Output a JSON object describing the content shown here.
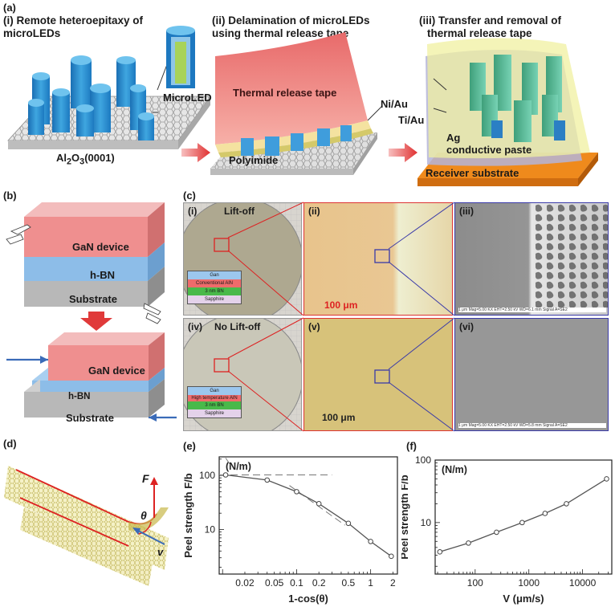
{
  "panel_a": {
    "label": "(a)",
    "step1": {
      "title_line1": "(i) Remote heteroepitaxy of",
      "title_line2": "microLEDs",
      "substrate": "Al2O3(0001)",
      "sub2": "2",
      "sub3": "3",
      "sub_tail": "(0001)",
      "inset": "MicroLED"
    },
    "step2": {
      "title_line1": "(ii) Delamination of microLEDs",
      "title_line2": "using thermal release tape",
      "tape": "Thermal release tape",
      "niau": "Ni/Au",
      "polyimide": "Polyimide"
    },
    "step3": {
      "title_line1": "(iii)  Transfer and removal of",
      "title_line2": "thermal release tape",
      "tiau": "Ti/Au",
      "ag_line1": "Ag",
      "ag_line2": "conductive paste",
      "receiver": "Receiver substrate"
    }
  },
  "panel_b": {
    "label": "(b)",
    "top": [
      "GaN device",
      "h-BN",
      "Substrate"
    ],
    "bottom": [
      "GaN device",
      "h-BN",
      "Substrate"
    ]
  },
  "panel_c": {
    "label": "(c)",
    "i": {
      "label": "(i)",
      "title": "Lift-off",
      "stack": [
        "Gan",
        "Conventional AlN",
        "3 nm BN",
        "Sapphire"
      ]
    },
    "ii": {
      "label": "(ii)",
      "scale": "100 μm"
    },
    "iii": {
      "label": "(iii)",
      "caption": "1 μm    Mag=5.00 KX  EHT=2.50 kV   WD=6.1 mm   Signal A=SE2"
    },
    "iv": {
      "label": "(iv)",
      "title": "No Lift-off",
      "stack": [
        "Gan",
        "High temperature AlN",
        "3 nm BN",
        "Sapphire"
      ]
    },
    "v": {
      "label": "(v)",
      "scale": "100 μm"
    },
    "vi": {
      "label": "(vi)",
      "caption": "1 μm    Mag=5.00 KX  EHT=2.50 kV   WD=5.8 mm   Signal A=SE2"
    }
  },
  "panel_d": {
    "label": "(d)",
    "force": "F",
    "angle": "θ",
    "velocity": "v"
  },
  "panel_e": {
    "label": "(e)"
  },
  "panel_f": {
    "label": "(f)"
  },
  "chart_data": [
    {
      "type": "line",
      "panel": "(e)",
      "unit_label": "(N/m)",
      "xlabel": "1-cos(θ)",
      "ylabel": "Peel strength F/b",
      "x_scale": "log",
      "y_scale": "log",
      "xticks": [
        "0.02",
        "0.05",
        "0.1",
        "0.2",
        "0.5",
        "1",
        "2"
      ],
      "yticks": [
        "10",
        "100"
      ],
      "xlim": [
        0.009,
        2.3
      ],
      "ylim": [
        1.5,
        220
      ],
      "series": [
        {
          "x": [
            0.011,
            0.04,
            0.1,
            0.2,
            0.5,
            1.0,
            1.9
          ],
          "y": [
            102,
            82,
            50,
            30,
            13,
            6,
            3.2
          ]
        }
      ]
    },
    {
      "type": "line",
      "panel": "(f)",
      "unit_label": "(N/m)",
      "xlabel": "V (μm/s)",
      "ylabel": "Peel strength F/b",
      "x_scale": "log",
      "y_scale": "log",
      "xticks": [
        "100",
        "1000",
        "10000"
      ],
      "yticks": [
        "10",
        "100"
      ],
      "xlim": [
        18,
        35000
      ],
      "ylim": [
        1.5,
        100
      ],
      "series": [
        {
          "x": [
            22,
            75,
            250,
            750,
            2000,
            5000,
            28000
          ],
          "y": [
            3.4,
            4.7,
            7.0,
            10,
            14,
            20,
            50
          ]
        }
      ]
    }
  ]
}
